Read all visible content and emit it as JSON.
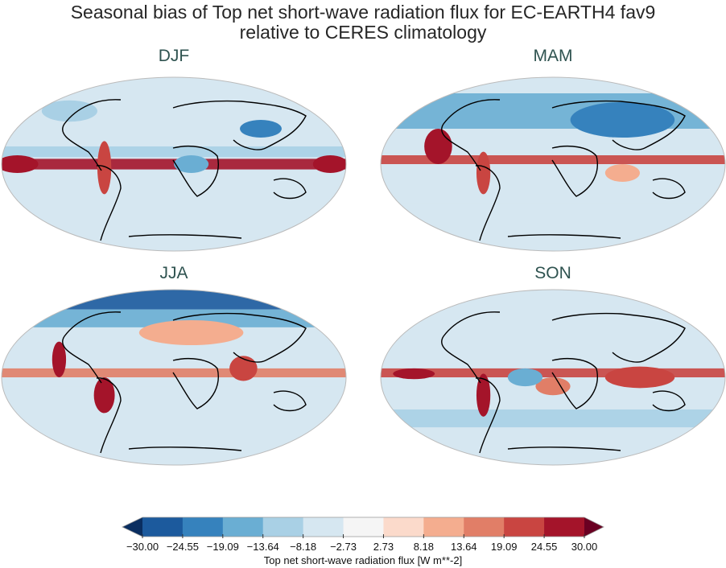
{
  "figure": {
    "title_line1": "Seasonal bias of Top net short-wave radiation flux for EC-EARTH4 fav9",
    "title_line2": "relative to CERES climatology"
  },
  "panels": [
    {
      "season": "DJF"
    },
    {
      "season": "MAM"
    },
    {
      "season": "JJA"
    },
    {
      "season": "SON"
    }
  ],
  "colorbar": {
    "label": "Top net short-wave radiation flux [W m**-2]",
    "ticks": [
      "−30.00",
      "−24.55",
      "−19.09",
      "−13.64",
      "−8.18",
      "−2.73",
      "2.73",
      "8.18",
      "13.64",
      "19.09",
      "24.55",
      "30.00"
    ],
    "colors": [
      "#1c5a9d",
      "#3682bd",
      "#6aaed3",
      "#a9d0e5",
      "#d6e7f1",
      "#f5f5f5",
      "#fbdacb",
      "#f4ad8f",
      "#e17e67",
      "#c94541",
      "#a4142a"
    ],
    "under_color": "#0a2e60",
    "over_color": "#6a0022",
    "extend": "both"
  }
}
